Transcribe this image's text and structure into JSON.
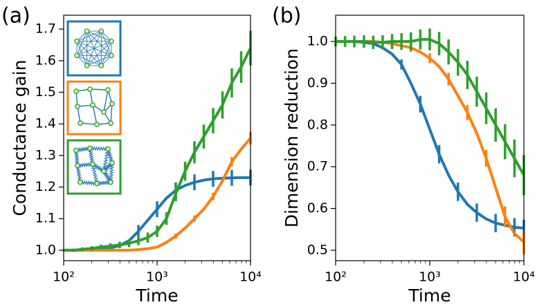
{
  "chart_data": [
    {
      "type": "line",
      "panel_label": "(a)",
      "xlabel": "Time",
      "ylabel": "Conductance gain",
      "xscale": "log",
      "xlim": [
        100,
        10000
      ],
      "xticks": [
        {
          "value": 100,
          "label": "10²"
        },
        {
          "value": 1000,
          "label": "10³"
        },
        {
          "value": 10000,
          "label": "10⁴"
        }
      ],
      "ylim": [
        0.967,
        1.744
      ],
      "yticks": [
        {
          "value": 1,
          "label": "1.0"
        },
        1.1,
        1.2,
        1.3,
        1.4,
        1.5,
        1.6,
        1.7
      ],
      "x": [
        100,
        126,
        158,
        200,
        251,
        316,
        398,
        501,
        631,
        794,
        1000,
        1259,
        1585,
        1995,
        2512,
        3162,
        3981,
        5012,
        6310,
        7943,
        10000
      ],
      "series": [
        {
          "color": "#1f77b4",
          "values": [
            1.0,
            1.0,
            1.0,
            1.0,
            1.003,
            1.007,
            1.015,
            1.03,
            1.06,
            1.095,
            1.13,
            1.165,
            1.19,
            1.205,
            1.215,
            1.222,
            1.226,
            1.228,
            1.229,
            1.23,
            1.23
          ],
          "errors": [
            null,
            null,
            null,
            null,
            null,
            null,
            0.008,
            null,
            0.02,
            null,
            0.025,
            null,
            0.025,
            null,
            0.025,
            null,
            0.025,
            null,
            0.025,
            null,
            0.025
          ]
        },
        {
          "color": "#ff7f0e",
          "values": [
            1.0,
            1.0,
            1.0,
            1.0,
            1.0,
            1.0,
            1.0,
            1.0,
            1.002,
            1.005,
            1.01,
            1.025,
            1.045,
            1.07,
            1.1,
            1.13,
            1.17,
            1.22,
            1.28,
            1.32,
            1.355
          ],
          "errors": [
            null,
            null,
            null,
            null,
            null,
            null,
            null,
            null,
            null,
            null,
            null,
            null,
            0.008,
            null,
            0.01,
            null,
            0.012,
            null,
            0.015,
            null,
            0.02
          ]
        },
        {
          "color": "#2ca02c",
          "values": [
            1.0,
            1.0,
            1.003,
            1.006,
            1.01,
            1.013,
            1.017,
            1.022,
            1.03,
            1.04,
            1.06,
            1.1,
            1.18,
            1.25,
            1.31,
            1.36,
            1.41,
            1.46,
            1.53,
            1.58,
            1.64
          ],
          "errors": [
            0.004,
            0.005,
            0.006,
            0.007,
            0.008,
            0.009,
            0.01,
            0.012,
            0.014,
            0.016,
            0.018,
            0.02,
            0.025,
            0.03,
            0.035,
            0.038,
            0.04,
            0.043,
            0.046,
            0.05,
            0.055
          ]
        }
      ]
    },
    {
      "type": "line",
      "panel_label": "(b)",
      "xlabel": "Time",
      "ylabel": "Dimension reduction",
      "xscale": "log",
      "xlim": [
        100,
        10000
      ],
      "xticks": [
        {
          "value": 100,
          "label": "10²"
        },
        {
          "value": 1000,
          "label": "10³"
        },
        {
          "value": 10000,
          "label": "10⁴"
        }
      ],
      "ylim": [
        0.475,
        1.063
      ],
      "yticks": [
        0.5,
        0.6,
        0.7,
        0.8,
        0.9,
        {
          "value": 1,
          "label": "1.0"
        }
      ],
      "x": [
        100,
        126,
        158,
        200,
        251,
        316,
        398,
        501,
        631,
        794,
        1000,
        1259,
        1585,
        1995,
        2512,
        3162,
        3981,
        5012,
        6310,
        7943,
        10000
      ],
      "series": [
        {
          "color": "#1f77b4",
          "values": [
            1.0,
            1.0,
            1.0,
            0.998,
            0.995,
            0.985,
            0.97,
            0.945,
            0.9,
            0.85,
            0.79,
            0.73,
            0.68,
            0.64,
            0.61,
            0.59,
            0.575,
            0.565,
            0.56,
            0.555,
            0.553
          ],
          "errors": [
            null,
            null,
            null,
            null,
            null,
            null,
            null,
            0.012,
            null,
            0.02,
            null,
            0.022,
            null,
            0.022,
            null,
            0.022,
            null,
            0.022,
            null,
            0.022,
            0.02
          ]
        },
        {
          "color": "#ff7f0e",
          "values": [
            1.0,
            1.0,
            1.0,
            1.0,
            1.0,
            0.998,
            0.995,
            0.99,
            0.985,
            0.975,
            0.96,
            0.94,
            0.91,
            0.87,
            0.83,
            0.78,
            0.72,
            0.65,
            0.58,
            0.54,
            0.52
          ],
          "errors": [
            null,
            null,
            null,
            null,
            null,
            null,
            0.01,
            null,
            0.01,
            null,
            0.012,
            null,
            0.015,
            null,
            0.018,
            null,
            0.02,
            null,
            0.025,
            null,
            0.03
          ]
        },
        {
          "color": "#2ca02c",
          "values": [
            1.0,
            1.0,
            1.0,
            1.0,
            0.998,
            0.998,
            1.0,
            1.0,
            1.0,
            1.005,
            1.005,
            0.995,
            0.975,
            0.95,
            0.92,
            0.88,
            0.84,
            0.8,
            0.76,
            0.72,
            0.68
          ],
          "errors": [
            0.012,
            0.013,
            0.014,
            0.015,
            0.016,
            0.017,
            0.018,
            0.02,
            0.022,
            0.024,
            0.026,
            0.028,
            0.03,
            0.032,
            0.034,
            0.036,
            0.038,
            0.04,
            0.042,
            0.045,
            0.048
          ]
        }
      ]
    }
  ]
}
